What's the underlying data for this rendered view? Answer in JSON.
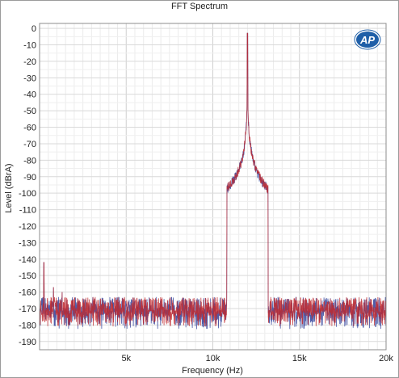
{
  "chart_data": {
    "type": "line",
    "title": "FFT Spectrum",
    "xlabel": "Frequency (Hz)",
    "ylabel": "Level (dBrA)",
    "xlim": [
      0,
      20000
    ],
    "ylim": [
      -195,
      3
    ],
    "x_ticks": [
      5000,
      10000,
      15000,
      20000
    ],
    "x_tick_labels": [
      "5k",
      "10k",
      "15k",
      "20k"
    ],
    "y_ticks": [
      0,
      -10,
      -20,
      -30,
      -40,
      -50,
      -60,
      -70,
      -80,
      -90,
      -100,
      -110,
      -120,
      -130,
      -140,
      -150,
      -160,
      -170,
      -180,
      -190
    ],
    "y_tick_labels": [
      "0",
      "-10",
      "-20",
      "-30",
      "-40",
      "-50",
      "-60",
      "-70",
      "-80",
      "-90",
      "-100",
      "-110",
      "-120",
      "-130",
      "-140",
      "-150",
      "-160",
      "-170",
      "-180",
      "-190"
    ],
    "grid": true,
    "series": [
      {
        "color": "#3b4aa0",
        "peak": {
          "x": 12000,
          "y": -3
        },
        "noise_floor_mean": -172,
        "noise_floor_range": [
          -186,
          -163
        ],
        "spurs": [
          {
            "x": 250,
            "y": -142
          },
          {
            "x": 800,
            "y": -157
          },
          {
            "x": 1300,
            "y": -160
          }
        ]
      },
      {
        "color": "#c0282e",
        "peak": {
          "x": 12000,
          "y": -3
        },
        "noise_floor_mean": -172,
        "noise_floor_range": [
          -184,
          -163
        ],
        "spurs": [
          {
            "x": 250,
            "y": -142
          },
          {
            "x": 800,
            "y": -157
          },
          {
            "x": 1300,
            "y": -160
          }
        ]
      }
    ]
  },
  "logo": {
    "text": "AP"
  },
  "colors": {
    "grid": "#d9d9d9",
    "axis": "#8c8c8c",
    "logo_fill": "#1f5fa8"
  }
}
